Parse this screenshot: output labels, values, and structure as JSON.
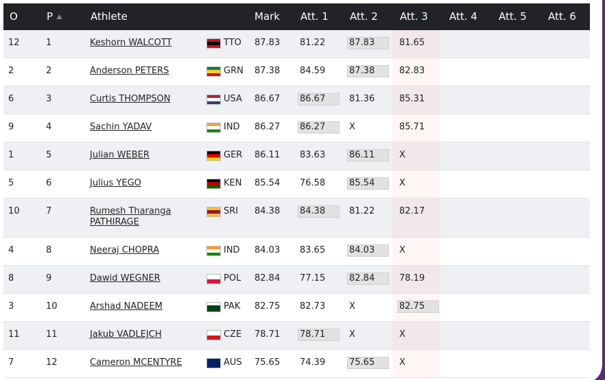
{
  "header": {
    "columns": [
      "O",
      "P",
      "Athlete",
      "Mark",
      "Att. 1",
      "Att. 2",
      "Att. 3",
      "Att. 4",
      "Att. 5",
      "Att. 6"
    ]
  },
  "table": {
    "rows": [
      {
        "order": "12",
        "place": "1",
        "athlete": "Keshorn WALCOTT",
        "country": "TTO",
        "flag": [
          "#ce1126",
          "#000000",
          "#ce1126"
        ],
        "mark": "87.83",
        "attempts": [
          "81.22",
          "87.83",
          "81.65"
        ],
        "best": 1
      },
      {
        "order": "2",
        "place": "2",
        "athlete": "Anderson PETERS",
        "country": "GRN",
        "flag": [
          "#007a5e",
          "#fcd116",
          "#ce1126"
        ],
        "mark": "87.38",
        "attempts": [
          "84.59",
          "87.38",
          "82.83"
        ],
        "best": 1
      },
      {
        "order": "6",
        "place": "3",
        "athlete": "Curtis THOMPSON",
        "country": "USA",
        "flag": [
          "#b22234",
          "#ffffff",
          "#3c3b6e"
        ],
        "mark": "86.67",
        "attempts": [
          "86.67",
          "81.36",
          "85.31"
        ],
        "best": 0
      },
      {
        "order": "9",
        "place": "4",
        "athlete": "Sachin YADAV",
        "country": "IND",
        "flag": [
          "#ff9933",
          "#ffffff",
          "#138808"
        ],
        "mark": "86.27",
        "attempts": [
          "86.27",
          "X",
          "85.71"
        ],
        "best": 0
      },
      {
        "order": "1",
        "place": "5",
        "athlete": "Julian WEBER",
        "country": "GER",
        "flag": [
          "#000000",
          "#dd0000",
          "#ffce00"
        ],
        "mark": "86.11",
        "attempts": [
          "83.63",
          "86.11",
          "X"
        ],
        "best": 1
      },
      {
        "order": "5",
        "place": "6",
        "athlete": "Julius YEGO",
        "country": "KEN",
        "flag": [
          "#000000",
          "#bb0000",
          "#006600"
        ],
        "mark": "85.54",
        "attempts": [
          "76.58",
          "85.54",
          "X"
        ],
        "best": 1
      },
      {
        "order": "10",
        "place": "7",
        "athlete": "Rumesh Tharanga PATHIRAGE",
        "country": "SRI",
        "flag": [
          "#ffbe29",
          "#8d153a",
          "#ffbe29"
        ],
        "mark": "84.38",
        "attempts": [
          "84.38",
          "81.22",
          "82.17"
        ],
        "best": 0
      },
      {
        "order": "4",
        "place": "8",
        "athlete": "Neeraj CHOPRA",
        "country": "IND",
        "flag": [
          "#ff9933",
          "#ffffff",
          "#138808"
        ],
        "mark": "84.03",
        "attempts": [
          "83.65",
          "84.03",
          "X"
        ],
        "best": 1
      },
      {
        "order": "8",
        "place": "9",
        "athlete": "Dawid WEGNER",
        "country": "POL",
        "flag": [
          "#ffffff",
          "#dc143c"
        ],
        "mark": "82.84",
        "attempts": [
          "77.15",
          "82.84",
          "78.19"
        ],
        "best": 1
      },
      {
        "order": "3",
        "place": "10",
        "athlete": "Arshad NADEEM",
        "country": "PAK",
        "flag": [
          "#ffffff",
          "#01411c",
          "#01411c"
        ],
        "mark": "82.75",
        "attempts": [
          "82.73",
          "X",
          "82.75"
        ],
        "best": 2
      },
      {
        "order": "11",
        "place": "11",
        "athlete": "Jakub VADLEJCH",
        "country": "CZE",
        "flag": [
          "#ffffff",
          "#d7141a"
        ],
        "mark": "78.71",
        "attempts": [
          "78.71",
          "X",
          "X"
        ],
        "best": 0
      },
      {
        "order": "7",
        "place": "12",
        "athlete": "Cameron MCENTYRE",
        "country": "AUS",
        "flag": [
          "#012169",
          "#012169"
        ],
        "mark": "75.65",
        "attempts": [
          "74.39",
          "75.65",
          "X"
        ],
        "best": 1
      }
    ]
  }
}
